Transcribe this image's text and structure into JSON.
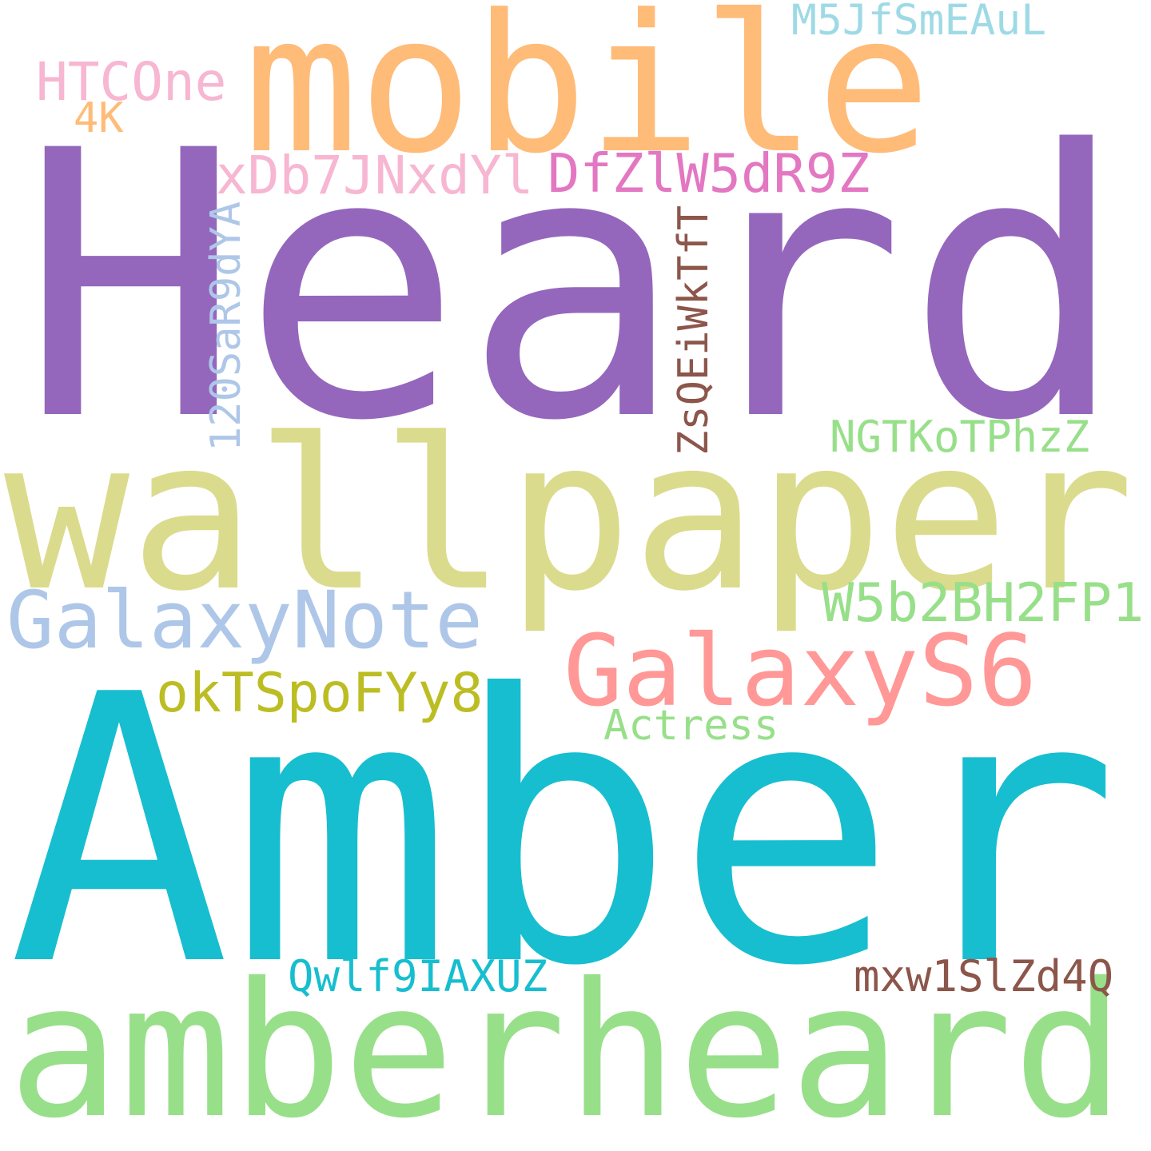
{
  "words": [
    {
      "text": "Heard",
      "color": "#9467bd"
    },
    {
      "text": "mobile",
      "color": "#ffbb78"
    },
    {
      "text": "wallpaper",
      "color": "#dbdb8d"
    },
    {
      "text": "Amber",
      "color": "#17becf"
    },
    {
      "text": "amberheard",
      "color": "#98df8a"
    },
    {
      "text": "GalaxyNote",
      "color": "#aec7e8"
    },
    {
      "text": "GalaxyS6",
      "color": "#ff9896"
    },
    {
      "text": "W5b2BH2FP1",
      "color": "#98df8a"
    },
    {
      "text": "okTSpoFYy8",
      "color": "#bcbd22"
    },
    {
      "text": "Actress",
      "color": "#98df8a"
    },
    {
      "text": "Qwlf9IAXUZ",
      "color": "#17becf"
    },
    {
      "text": "mxw1SlZd4Q",
      "color": "#8c564b"
    },
    {
      "text": "NGTKoTPhzZ",
      "color": "#98df8a"
    },
    {
      "text": "xDb7JNxdYl",
      "color": "#f7b6d2"
    },
    {
      "text": "DfZlW5dR9Z",
      "color": "#e377c2"
    },
    {
      "text": "HTCOne",
      "color": "#f7b6d2"
    },
    {
      "text": "4K",
      "color": "#ffbb78"
    },
    {
      "text": "M5JfSmEAuL",
      "color": "#9edae5"
    },
    {
      "text": "120SaR9dYA",
      "color": "#aec7e8"
    },
    {
      "text": "ZsQEiWkTfT",
      "color": "#8c564b"
    }
  ]
}
